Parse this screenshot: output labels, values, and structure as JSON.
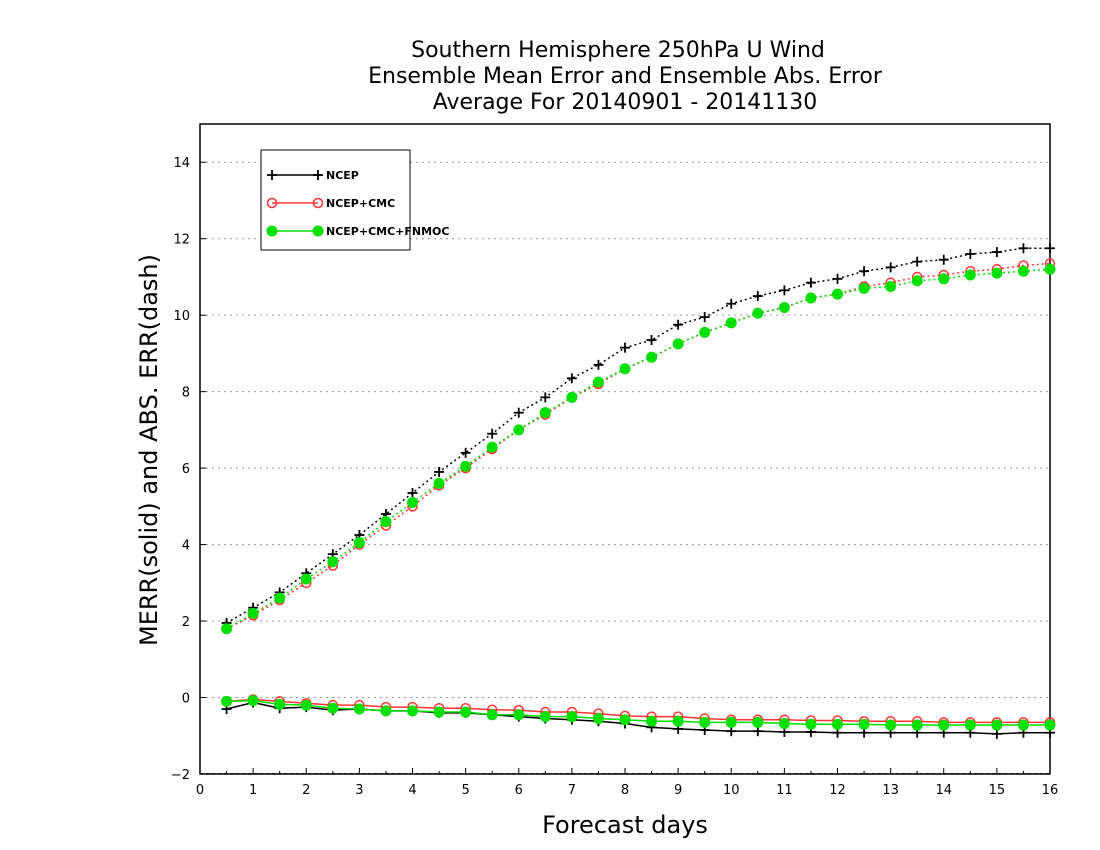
{
  "chart_data": {
    "type": "line",
    "title": [
      "Southern Hemisphere 250hPa U Wind",
      "Ensemble Mean Error and Ensemble Abs. Error",
      "Average For 20140901 - 20141130"
    ],
    "xlabel": "Forecast days",
    "ylabel": "MERR(solid) and ABS. ERR(dash)",
    "xlim": [
      0,
      16
    ],
    "ylim": [
      -2,
      15
    ],
    "xticks": [
      "0",
      "1",
      "2",
      "3",
      "4",
      "5",
      "6",
      "7",
      "8",
      "9",
      "10",
      "11",
      "12",
      "13",
      "14",
      "15",
      "16"
    ],
    "yticks": [
      "−2",
      "0",
      "2",
      "4",
      "6",
      "8",
      "10",
      "12",
      "14"
    ],
    "grid": true,
    "legend_position": "top-left",
    "x": [
      0.5,
      1,
      1.5,
      2,
      2.5,
      3,
      3.5,
      4,
      4.5,
      5,
      5.5,
      6,
      6.5,
      7,
      7.5,
      8,
      8.5,
      9,
      9.5,
      10,
      10.5,
      11,
      11.5,
      12,
      12.5,
      13,
      13.5,
      14,
      14.5,
      15,
      15.5,
      16
    ],
    "series": [
      {
        "name": "NCEP",
        "color": "#000000",
        "marker": "plus",
        "mean_error": [
          -0.3,
          -0.13,
          -0.28,
          -0.25,
          -0.33,
          -0.3,
          -0.35,
          -0.35,
          -0.4,
          -0.4,
          -0.45,
          -0.5,
          -0.55,
          -0.58,
          -0.62,
          -0.68,
          -0.78,
          -0.82,
          -0.85,
          -0.88,
          -0.88,
          -0.9,
          -0.9,
          -0.92,
          -0.92,
          -0.92,
          -0.92,
          -0.92,
          -0.92,
          -0.95,
          -0.92,
          -0.92
        ],
        "abs_error": [
          1.95,
          2.35,
          2.75,
          3.25,
          3.75,
          4.25,
          4.8,
          5.35,
          5.9,
          6.4,
          6.9,
          7.45,
          7.85,
          8.35,
          8.7,
          9.15,
          9.35,
          9.75,
          9.95,
          10.3,
          10.5,
          10.65,
          10.85,
          10.95,
          11.15,
          11.25,
          11.4,
          11.45,
          11.6,
          11.65,
          11.75,
          11.75
        ]
      },
      {
        "name": "NCEP+CMC",
        "color": "#ff3333",
        "marker": "open-circle",
        "mean_error": [
          -0.1,
          -0.05,
          -0.1,
          -0.15,
          -0.2,
          -0.2,
          -0.25,
          -0.25,
          -0.28,
          -0.28,
          -0.32,
          -0.33,
          -0.38,
          -0.38,
          -0.42,
          -0.48,
          -0.5,
          -0.5,
          -0.55,
          -0.58,
          -0.58,
          -0.58,
          -0.6,
          -0.6,
          -0.62,
          -0.62,
          -0.62,
          -0.65,
          -0.65,
          -0.65,
          -0.65,
          -0.65
        ],
        "abs_error": [
          1.8,
          2.15,
          2.55,
          3.0,
          3.45,
          4.0,
          4.5,
          5.0,
          5.55,
          6.0,
          6.5,
          7.0,
          7.4,
          7.85,
          8.2,
          8.6,
          8.9,
          9.25,
          9.55,
          9.8,
          10.05,
          10.2,
          10.45,
          10.55,
          10.75,
          10.85,
          11.0,
          11.05,
          11.15,
          11.2,
          11.3,
          11.35
        ]
      },
      {
        "name": "NCEP+CMC+FNMOC",
        "color": "#00e000",
        "marker": "filled-circle",
        "mean_error": [
          -0.1,
          -0.08,
          -0.18,
          -0.2,
          -0.28,
          -0.3,
          -0.35,
          -0.35,
          -0.38,
          -0.38,
          -0.45,
          -0.45,
          -0.5,
          -0.5,
          -0.55,
          -0.58,
          -0.62,
          -0.62,
          -0.65,
          -0.65,
          -0.65,
          -0.68,
          -0.7,
          -0.7,
          -0.7,
          -0.72,
          -0.72,
          -0.72,
          -0.72,
          -0.72,
          -0.72,
          -0.72
        ],
        "abs_error": [
          1.8,
          2.2,
          2.6,
          3.1,
          3.55,
          4.05,
          4.6,
          5.1,
          5.6,
          6.05,
          6.55,
          7.0,
          7.45,
          7.85,
          8.25,
          8.6,
          8.9,
          9.25,
          9.55,
          9.8,
          10.05,
          10.2,
          10.45,
          10.55,
          10.7,
          10.75,
          10.9,
          10.95,
          11.05,
          11.1,
          11.15,
          11.2
        ]
      }
    ]
  }
}
